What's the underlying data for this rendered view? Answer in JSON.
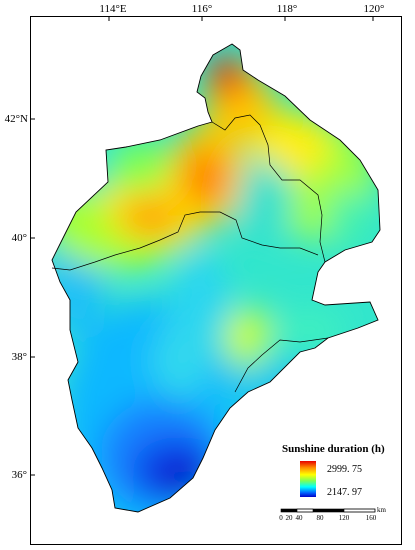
{
  "lon_labels": [
    "114°E",
    "116°",
    "118°",
    "120°"
  ],
  "lat_labels": [
    "42°N",
    "40°",
    "38°",
    "36°"
  ],
  "legend": {
    "title": "Sunshine duration (h)",
    "max_label": "2999. 75",
    "min_label": "2147. 97",
    "max_value": 2999.75,
    "min_value": 2147.97,
    "colors": [
      "#e60000",
      "#ff8a00",
      "#ffff00",
      "#7fff55",
      "#00ffff",
      "#0064ff",
      "#0000c8"
    ]
  },
  "scale_bar": {
    "ticks": [
      "0",
      "20",
      "40",
      "80",
      "120",
      "160"
    ],
    "unit": "km"
  }
}
